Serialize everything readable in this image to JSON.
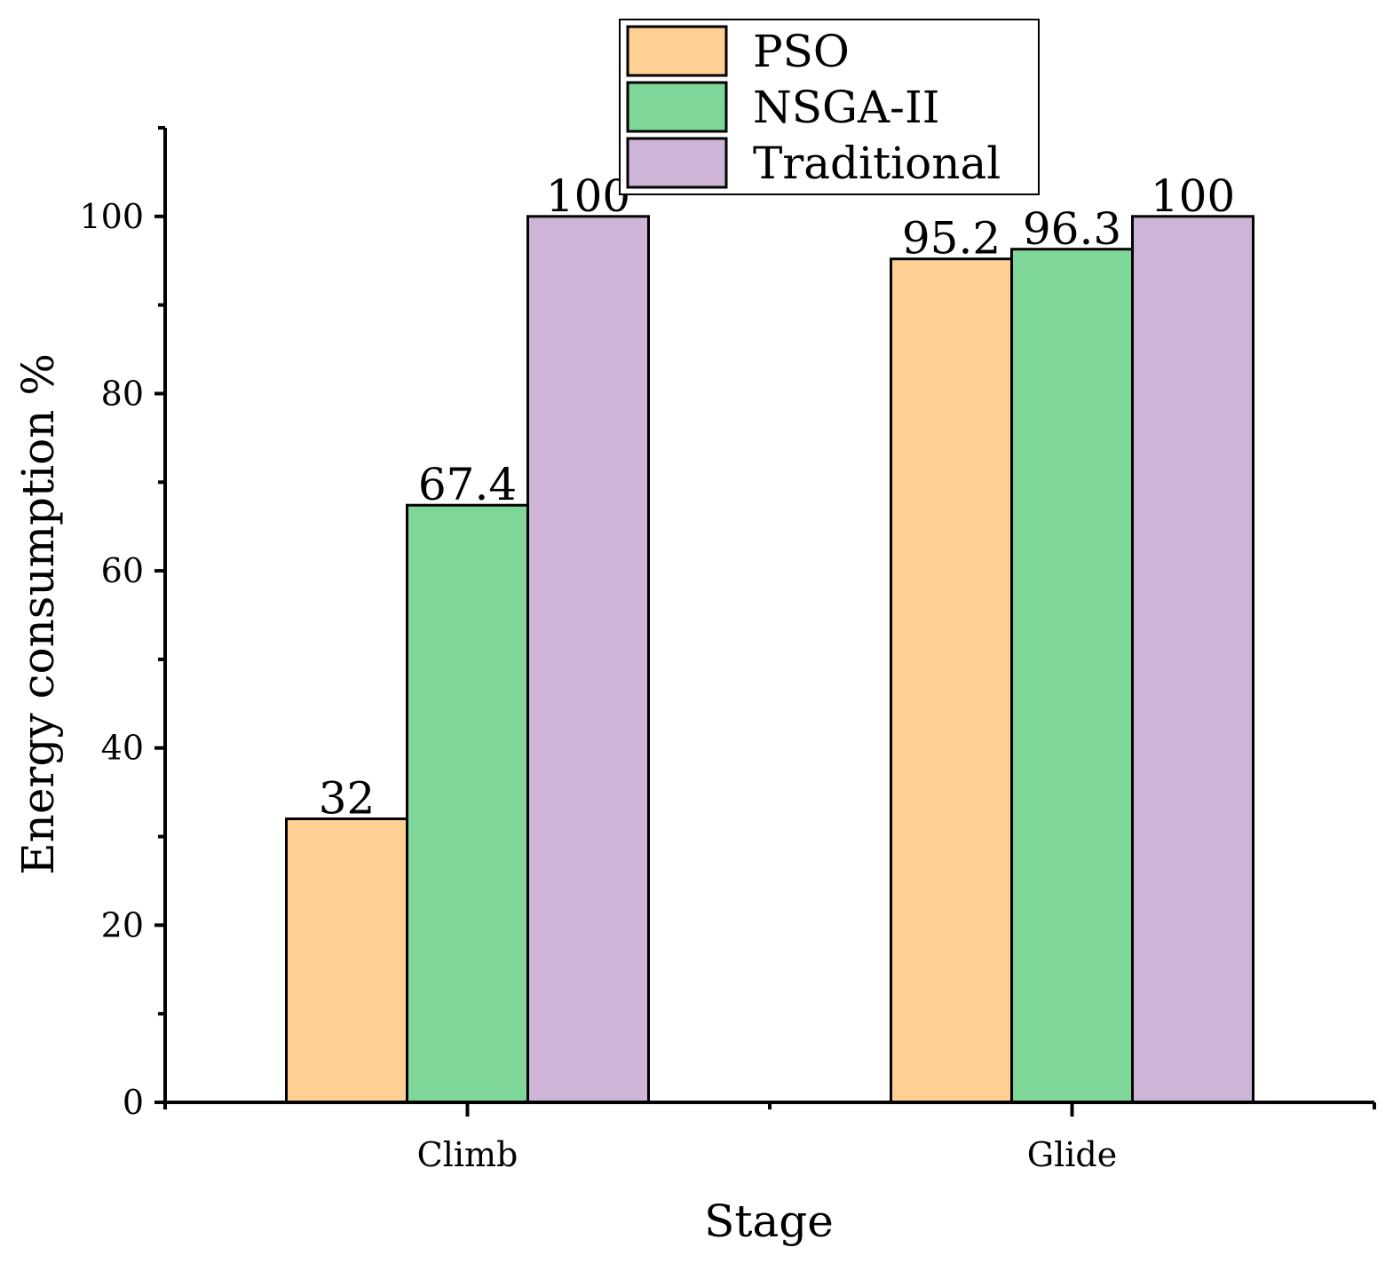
{
  "chart_data": {
    "type": "bar",
    "title": "",
    "xlabel": "Stage",
    "ylabel": "Energy consumption %",
    "categories": [
      "Climb",
      "Glide"
    ],
    "ylim": [
      0,
      110
    ],
    "yticks": [
      0,
      20,
      40,
      60,
      80,
      100
    ],
    "grid": false,
    "legend_position": "top-center",
    "series": [
      {
        "name": "PSO",
        "color": "#FED093",
        "values": [
          32,
          95.2
        ],
        "labels": [
          "32",
          "95.2"
        ]
      },
      {
        "name": "NSGA-II",
        "color": "#7FD699",
        "values": [
          67.4,
          96.3
        ],
        "labels": [
          "67.4",
          "96.3"
        ]
      },
      {
        "name": "Traditional",
        "color": "#CEB5D8",
        "values": [
          100,
          100
        ],
        "labels": [
          "100",
          "100"
        ]
      }
    ]
  }
}
